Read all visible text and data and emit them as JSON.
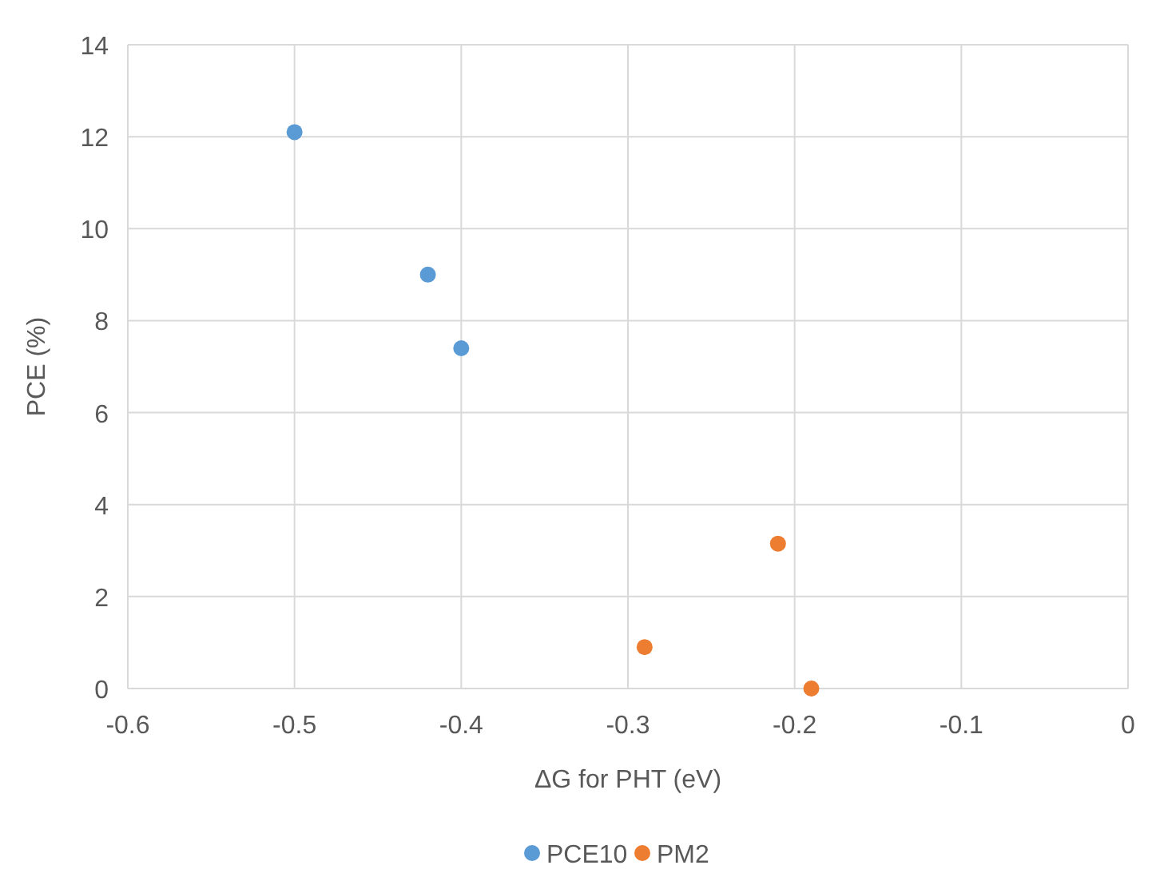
{
  "chart_data": {
    "type": "scatter",
    "xlabel": "ΔG for PHT (eV)",
    "ylabel": "PCE (%)",
    "series": [
      {
        "name": "PCE10",
        "color": "#5b9bd5",
        "x": [
          -0.5,
          -0.42,
          -0.4
        ],
        "values": [
          12.1,
          9.0,
          7.4
        ]
      },
      {
        "name": "PM2",
        "color": "#ed7d31",
        "x": [
          -0.29,
          -0.21,
          -0.19
        ],
        "values": [
          0.9,
          3.15,
          0
        ]
      }
    ],
    "xlim": [
      -0.6,
      0
    ],
    "xticks": [
      -0.6,
      -0.5,
      -0.4,
      -0.3,
      -0.2,
      -0.1,
      0
    ],
    "ylim": [
      0,
      14
    ],
    "yticks": [
      0,
      2,
      4,
      6,
      8,
      10,
      12,
      14
    ],
    "grid": true,
    "legend": "bottom",
    "marker": "circle"
  }
}
